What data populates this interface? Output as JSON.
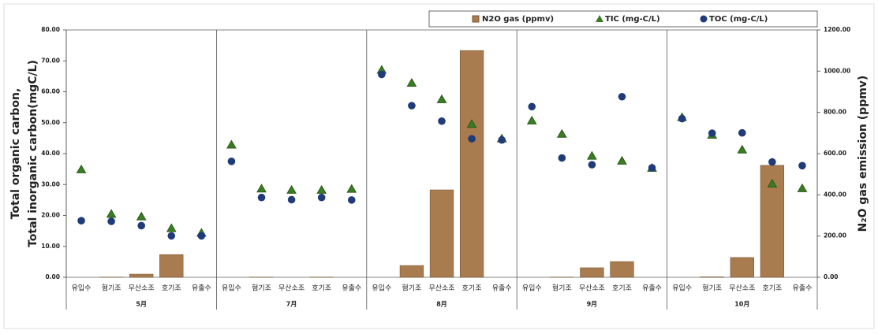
{
  "chart_data": {
    "type": "combo",
    "ylabel": [
      "Total organic carbon,",
      "Total inorganic carbon(mgC/L)"
    ],
    "y2label": "N₂O gas emission (ppmv)",
    "groups": [
      "5月",
      "7月",
      "8月",
      "9月",
      "10月"
    ],
    "categories": [
      "유입수",
      "혐기조",
      "무산소조",
      "호기조",
      "유출수",
      "유입수",
      "혐기조",
      "무산소조",
      "호기조",
      "유출수",
      "유입수",
      "혐기조",
      "무산소조",
      "호기조",
      "유출수",
      "유입수",
      "혐기조",
      "무산소조",
      "호기조",
      "유출수",
      "유입수",
      "혐기조",
      "무산소조",
      "호기조",
      "유출수"
    ],
    "ylim": [
      0,
      80
    ],
    "yticks": [
      {
        "value": 0,
        "label": "0.00"
      },
      {
        "value": 10,
        "label": "10.00"
      },
      {
        "value": 20,
        "label": "20.00"
      },
      {
        "value": 30,
        "label": "30.00"
      },
      {
        "value": 40,
        "label": "40.00"
      },
      {
        "value": 50,
        "label": "50.00"
      },
      {
        "value": 60,
        "label": "60.00"
      },
      {
        "value": 70,
        "label": "70.00"
      },
      {
        "value": 80,
        "label": "80.00"
      }
    ],
    "y2lim": [
      0,
      1200
    ],
    "y2ticks": [
      {
        "value": 0,
        "label": "0.00"
      },
      {
        "value": 200,
        "label": "200.00"
      },
      {
        "value": 400,
        "label": "400.00"
      },
      {
        "value": 600,
        "label": "600.00"
      },
      {
        "value": 800,
        "label": "800.00"
      },
      {
        "value": 1000,
        "label": "1000.00"
      },
      {
        "value": 1200,
        "label": "1200.00"
      }
    ],
    "series": [
      {
        "name": "N2O gas (ppmv)",
        "type": "bar",
        "axis": "y2",
        "color": "#a97c50",
        "values": [
          0,
          1,
          15,
          110,
          0,
          0,
          1,
          0,
          1,
          0,
          0,
          57,
          424,
          1100,
          0,
          0,
          1,
          46,
          76,
          0,
          0,
          2,
          96,
          543,
          0
        ]
      },
      {
        "name": "TIC (mg-C/L)",
        "type": "triangle",
        "color": "#3a7d22",
        "values": [
          34.8,
          20.4,
          19.6,
          15.8,
          14.3,
          42.8,
          28.6,
          28.2,
          28.2,
          28.5,
          67.0,
          62.8,
          57.5,
          49.5,
          44.8,
          50.6,
          46.3,
          39.2,
          37.6,
          35.3,
          51.7,
          46.0,
          41.2,
          30.2,
          28.7
        ]
      },
      {
        "name": "TOC (mg-C/L)",
        "type": "circle",
        "color": "#1f3b7a",
        "values": [
          18.3,
          18.1,
          16.7,
          13.4,
          13.4,
          37.5,
          25.8,
          25.1,
          25.8,
          25.0,
          65.6,
          55.5,
          50.5,
          44.8,
          44.4,
          55.2,
          38.6,
          36.4,
          58.4,
          35.4,
          51.3,
          46.6,
          46.7,
          37.3,
          36.1
        ]
      }
    ]
  }
}
